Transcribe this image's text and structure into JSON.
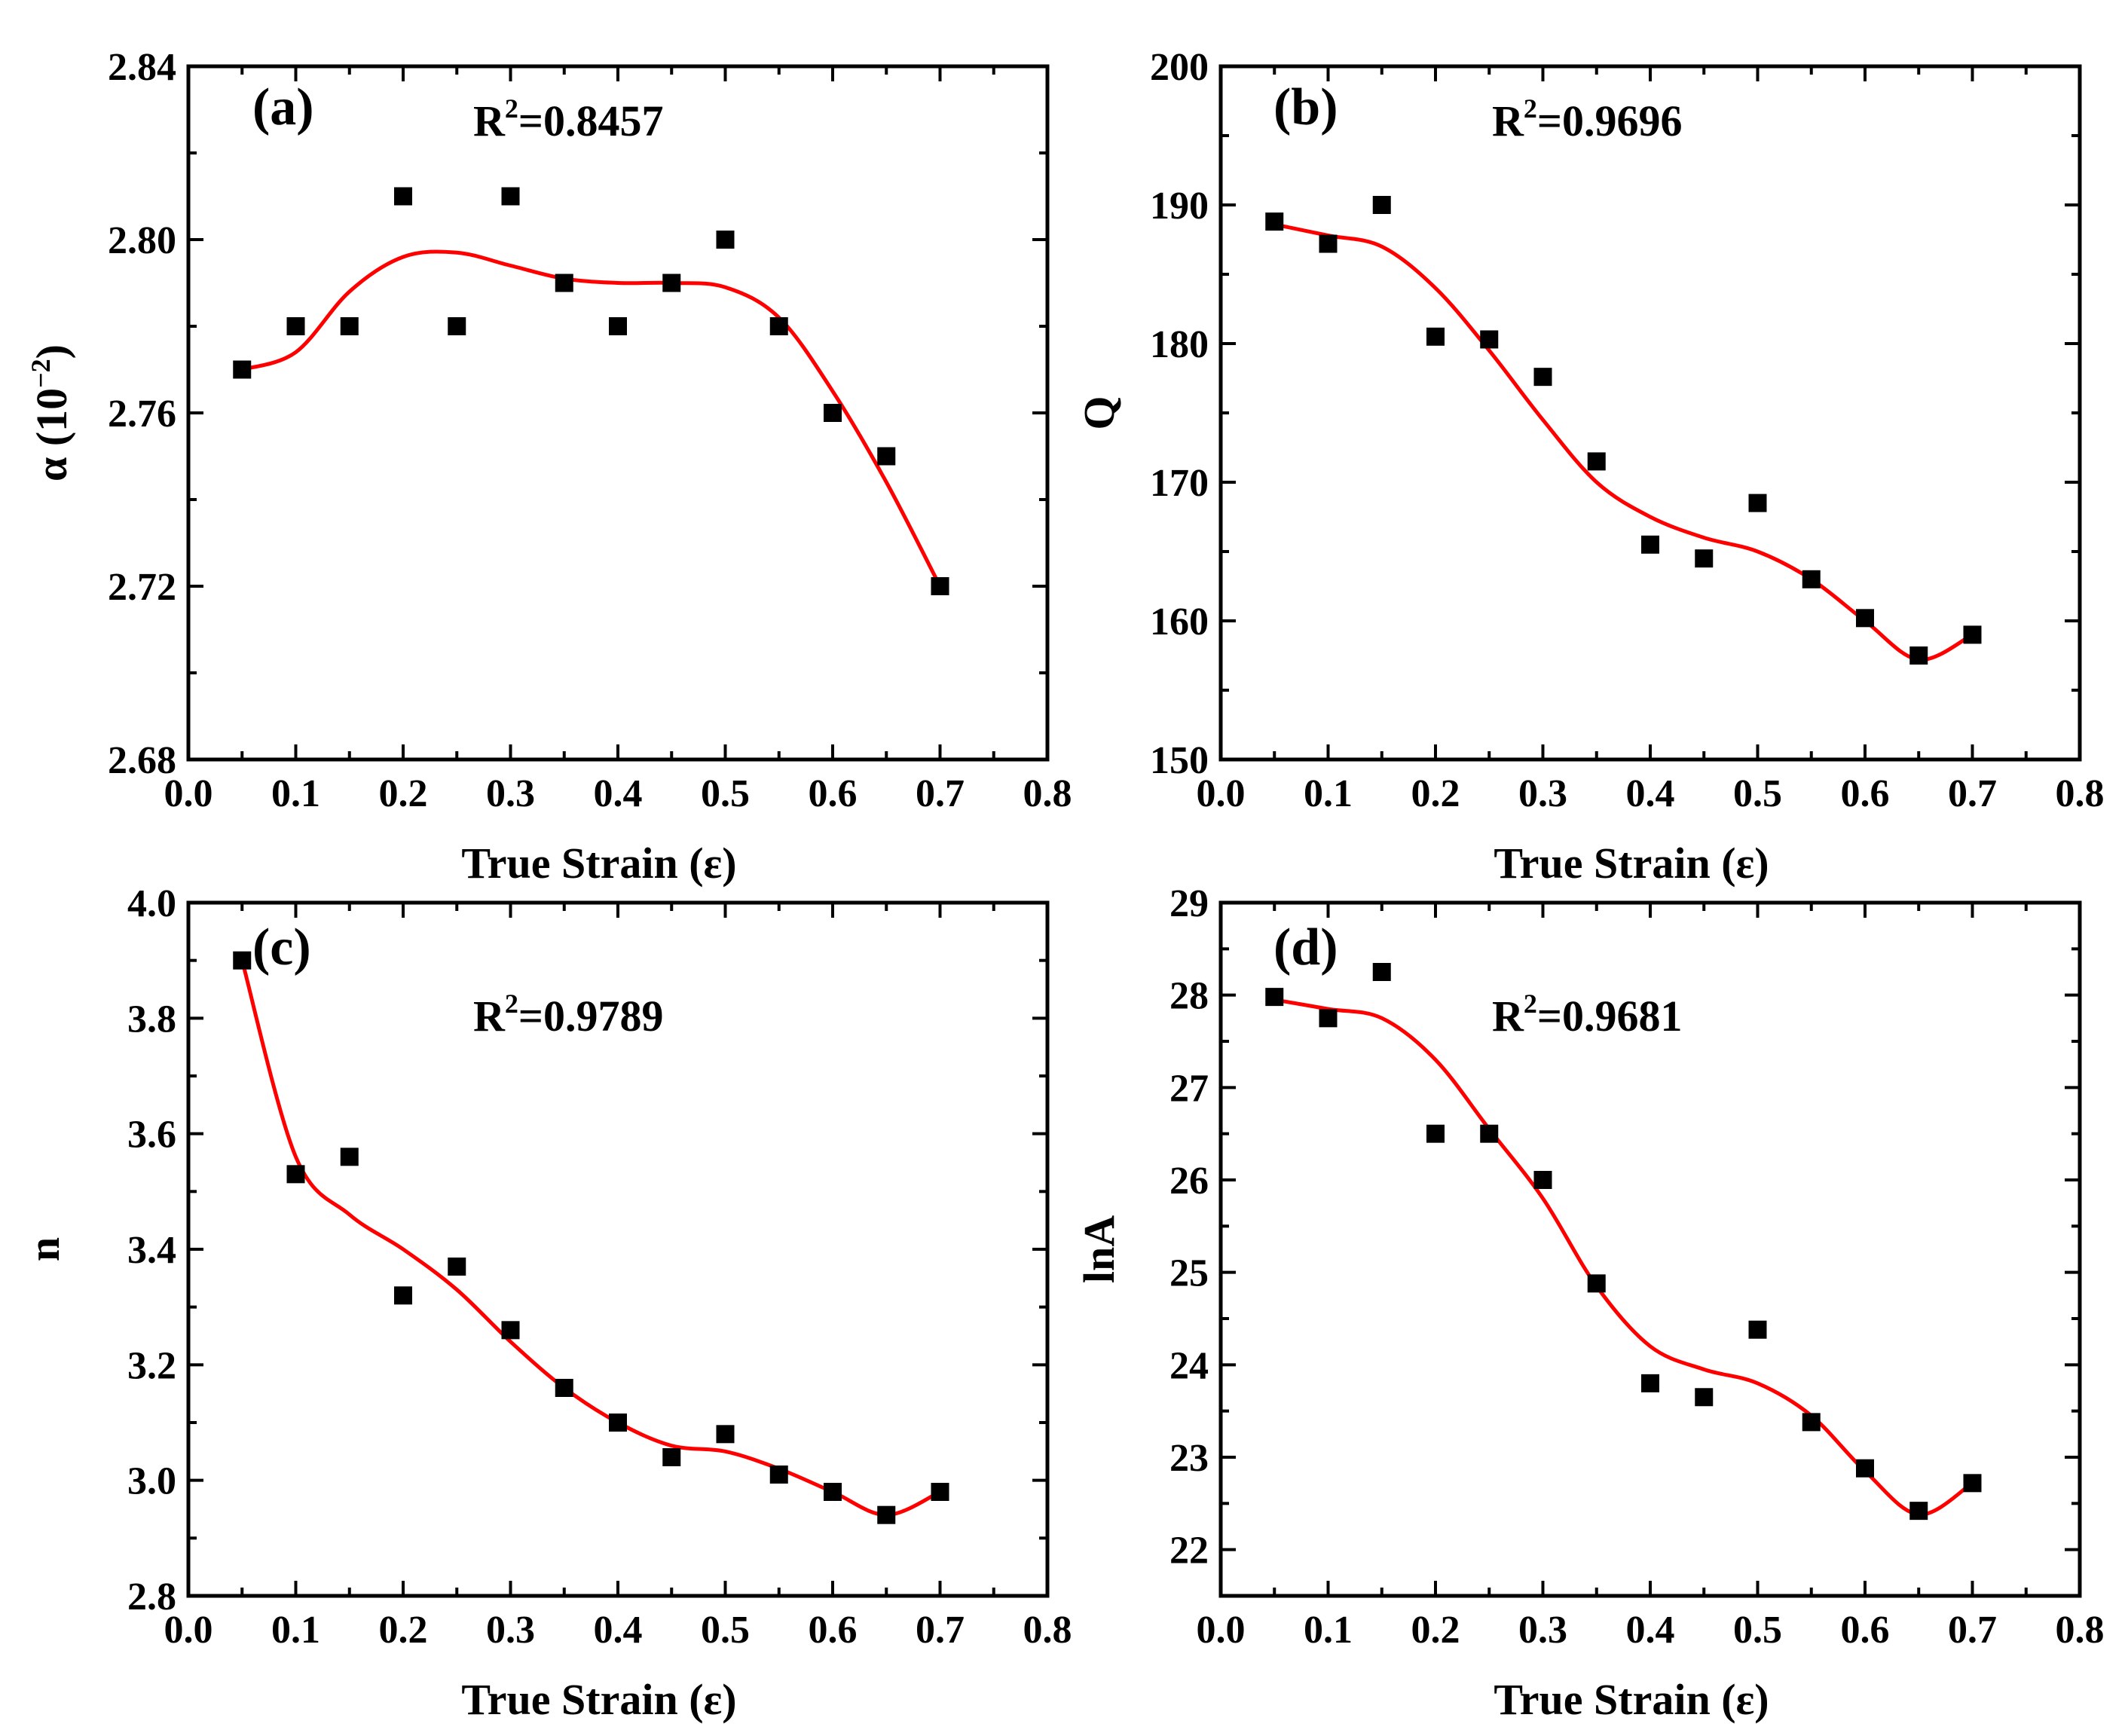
{
  "figure": {
    "background": "#ffffff",
    "fit_color": "#ff0000",
    "marker_color": "#000000"
  },
  "chart_data": [
    {
      "type": "scatter",
      "panel": "(a)",
      "r2_label": "R",
      "r2_sup": "2",
      "r2_value": "=0.8457",
      "xlabel": "True Strain (ε)",
      "ylabel": "α (10",
      "ylabel_sup": "−2",
      "ylabel_close": ")",
      "xlim": [
        0.0,
        0.8
      ],
      "ylim": [
        2.68,
        2.84
      ],
      "xticks": [
        "0.0",
        "0.1",
        "0.2",
        "0.3",
        "0.4",
        "0.5",
        "0.6",
        "0.7",
        "0.8"
      ],
      "yticks": [
        "2.68",
        "2.72",
        "2.76",
        "2.80",
        "2.84"
      ],
      "x": [
        0.05,
        0.1,
        0.15,
        0.2,
        0.25,
        0.3,
        0.35,
        0.4,
        0.45,
        0.5,
        0.55,
        0.6,
        0.65,
        0.7
      ],
      "y": [
        2.77,
        2.78,
        2.78,
        2.81,
        2.78,
        2.81,
        2.79,
        2.78,
        2.79,
        2.8,
        2.78,
        2.76,
        2.75,
        2.72
      ],
      "fit_x": [
        0.05,
        0.1,
        0.15,
        0.2,
        0.25,
        0.3,
        0.35,
        0.4,
        0.45,
        0.5,
        0.55,
        0.6,
        0.65,
        0.7
      ],
      "fit_y": [
        2.77,
        2.774,
        2.788,
        2.796,
        2.797,
        2.794,
        2.791,
        2.79,
        2.79,
        2.789,
        2.782,
        2.765,
        2.744,
        2.72
      ]
    },
    {
      "type": "scatter",
      "panel": "(b)",
      "r2_label": "R",
      "r2_sup": "2",
      "r2_value": "=0.9696",
      "xlabel": "True Strain (ε)",
      "ylabel": "Q",
      "xlim": [
        0.0,
        0.8
      ],
      "ylim": [
        150,
        200
      ],
      "xticks": [
        "0.0",
        "0.1",
        "0.2",
        "0.3",
        "0.4",
        "0.5",
        "0.6",
        "0.7",
        "0.8"
      ],
      "yticks": [
        "150",
        "160",
        "170",
        "180",
        "190",
        "200"
      ],
      "x": [
        0.05,
        0.1,
        0.15,
        0.2,
        0.25,
        0.3,
        0.35,
        0.4,
        0.45,
        0.5,
        0.55,
        0.6,
        0.65,
        0.7
      ],
      "y": [
        188.8,
        187.2,
        190.0,
        180.5,
        180.3,
        177.6,
        171.5,
        165.5,
        164.5,
        168.5,
        163.0,
        160.2,
        157.5,
        159.0
      ],
      "fit_x": [
        0.05,
        0.1,
        0.15,
        0.2,
        0.25,
        0.3,
        0.35,
        0.4,
        0.45,
        0.5,
        0.55,
        0.6,
        0.65,
        0.7
      ],
      "fit_y": [
        188.6,
        187.8,
        187.0,
        184.0,
        179.5,
        174.5,
        170.0,
        167.5,
        166.0,
        165.0,
        163.0,
        160.0,
        157.2,
        159.0
      ]
    },
    {
      "type": "scatter",
      "panel": "(c)",
      "r2_label": "R",
      "r2_sup": "2",
      "r2_value": "=0.9789",
      "xlabel": "True Strain (ε)",
      "ylabel": "n",
      "xlim": [
        0.0,
        0.8
      ],
      "ylim": [
        2.8,
        4.0
      ],
      "xticks": [
        "0.0",
        "0.1",
        "0.2",
        "0.3",
        "0.4",
        "0.5",
        "0.6",
        "0.7",
        "0.8"
      ],
      "yticks": [
        "2.8",
        "3.0",
        "3.2",
        "3.4",
        "3.6",
        "3.8",
        "4.0"
      ],
      "x": [
        0.05,
        0.1,
        0.15,
        0.2,
        0.25,
        0.3,
        0.35,
        0.4,
        0.45,
        0.5,
        0.55,
        0.6,
        0.65,
        0.7
      ],
      "y": [
        3.9,
        3.53,
        3.56,
        3.32,
        3.37,
        3.26,
        3.16,
        3.1,
        3.04,
        3.08,
        3.01,
        2.98,
        2.94,
        2.98
      ],
      "fit_x": [
        0.05,
        0.1,
        0.15,
        0.2,
        0.25,
        0.3,
        0.35,
        0.4,
        0.45,
        0.5,
        0.55,
        0.6,
        0.65,
        0.7
      ],
      "fit_y": [
        3.9,
        3.56,
        3.46,
        3.4,
        3.33,
        3.24,
        3.16,
        3.1,
        3.06,
        3.05,
        3.02,
        2.98,
        2.94,
        2.98
      ]
    },
    {
      "type": "scatter",
      "panel": "(d)",
      "r2_label": "R",
      "r2_sup": "2",
      "r2_value": "=0.9681",
      "xlabel": "True Strain (ε)",
      "ylabel": "lnA",
      "xlim": [
        0.0,
        0.8
      ],
      "ylim": [
        21.5,
        29
      ],
      "xticks": [
        "0.0",
        "0.1",
        "0.2",
        "0.3",
        "0.4",
        "0.5",
        "0.6",
        "0.7",
        "0.8"
      ],
      "yticks": [
        "22",
        "23",
        "24",
        "25",
        "26",
        "27",
        "28",
        "29"
      ],
      "x": [
        0.05,
        0.1,
        0.15,
        0.2,
        0.25,
        0.3,
        0.35,
        0.4,
        0.45,
        0.5,
        0.55,
        0.6,
        0.65,
        0.7
      ],
      "y": [
        27.98,
        27.75,
        28.25,
        26.5,
        26.5,
        26.0,
        24.88,
        23.8,
        23.65,
        24.38,
        23.38,
        22.88,
        22.42,
        22.72
      ],
      "fit_x": [
        0.05,
        0.1,
        0.15,
        0.2,
        0.25,
        0.3,
        0.35,
        0.4,
        0.45,
        0.5,
        0.55,
        0.6,
        0.65,
        0.7
      ],
      "fit_y": [
        27.95,
        27.85,
        27.75,
        27.3,
        26.55,
        25.8,
        24.85,
        24.2,
        23.95,
        23.8,
        23.45,
        22.85,
        22.38,
        22.72
      ]
    }
  ]
}
